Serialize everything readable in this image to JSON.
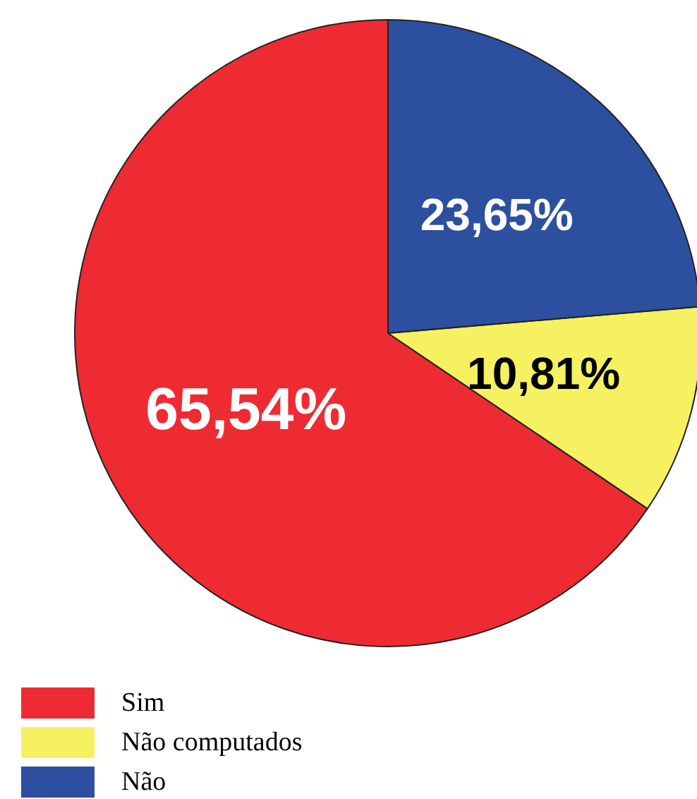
{
  "chart_data": {
    "type": "pie",
    "categories": [
      "Sim",
      "Não computados",
      "Não"
    ],
    "values": [
      65.54,
      10.81,
      23.65
    ],
    "colors": [
      "#ee2b33",
      "#f6f161",
      "#2d4f9f"
    ],
    "value_labels": [
      "65,54%",
      "10,81%",
      "23,65%"
    ],
    "legend": "bottom left"
  }
}
